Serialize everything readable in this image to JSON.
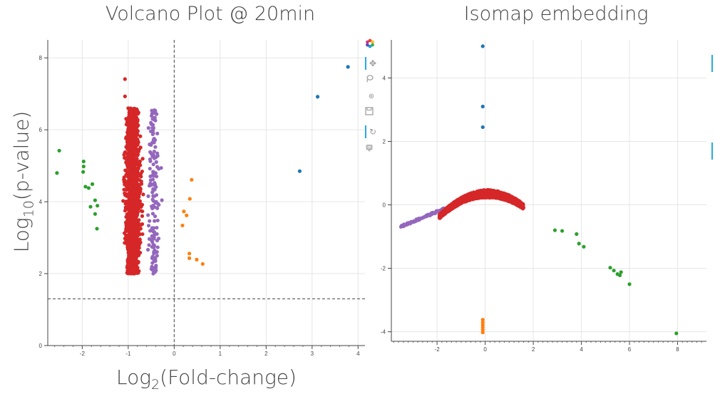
{
  "chart_data": [
    {
      "type": "scatter",
      "title": "Volcano Plot @ 20min",
      "xlabel_main": "Log",
      "xlabel_sub": "2",
      "xlabel_rest": "(Fold-change)",
      "ylabel_main": "Log",
      "ylabel_sub": "10",
      "ylabel_rest": "(p-value)",
      "xlim": [
        -2.75,
        4.15
      ],
      "ylim": [
        0,
        8.5
      ],
      "xticks": [
        -2,
        -1,
        0,
        1,
        2,
        3,
        4
      ],
      "yticks": [
        0,
        2,
        4,
        6,
        8
      ],
      "grid": true,
      "reference_lines": {
        "vertical_x": 0,
        "horizontal_y": 1.3
      },
      "series": [
        {
          "color": "#1f77b4",
          "points": [
            [
              3.78,
              7.75
            ],
            [
              3.12,
              6.92
            ],
            [
              2.73,
              4.85
            ]
          ]
        },
        {
          "color": "#2ca02c",
          "points": [
            [
              -2.5,
              5.42
            ],
            [
              -2.55,
              4.8
            ],
            [
              -1.97,
              5.12
            ],
            [
              -1.97,
              4.98
            ],
            [
              -1.98,
              4.83
            ],
            [
              -1.78,
              4.49
            ],
            [
              -1.93,
              4.42
            ],
            [
              -1.86,
              4.38
            ],
            [
              -1.72,
              4.04
            ],
            [
              -1.67,
              3.89
            ],
            [
              -1.82,
              3.86
            ],
            [
              -1.72,
              3.66
            ],
            [
              -1.68,
              3.25
            ]
          ]
        },
        {
          "color": "#ff7f0e",
          "points": [
            [
              0.38,
              4.61
            ],
            [
              0.34,
              4.08
            ],
            [
              0.21,
              3.73
            ],
            [
              0.27,
              3.62
            ],
            [
              0.18,
              3.34
            ],
            [
              0.33,
              2.56
            ],
            [
              0.33,
              2.43
            ],
            [
              0.49,
              2.39
            ],
            [
              0.62,
              2.27
            ]
          ]
        },
        {
          "color": "#d62728",
          "cluster": {
            "x_center": -0.9,
            "x_spread": 0.25,
            "y_min": 2.0,
            "y_max": 6.6,
            "count": 1500,
            "extremes": [
              [
                -1.07,
                7.41
              ],
              [
                -1.07,
                6.93
              ],
              [
                -1.0,
                6.6
              ]
            ]
          }
        },
        {
          "color": "#9467bd",
          "cluster": {
            "x_center": -0.45,
            "x_spread": 0.18,
            "y_min": 2.0,
            "y_max": 6.55,
            "count": 160
          }
        }
      ]
    },
    {
      "type": "scatter",
      "title": "Isomap embedding",
      "xlim": [
        -3.9,
        9.2
      ],
      "ylim": [
        -4.3,
        5.2
      ],
      "xticks": [
        -2,
        0,
        2,
        4,
        6,
        8
      ],
      "yticks": [
        -4,
        -2,
        0,
        2,
        4
      ],
      "grid": true,
      "series": [
        {
          "color": "#1f77b4",
          "points": [
            [
              -0.1,
              5.0
            ],
            [
              -0.1,
              3.1
            ],
            [
              -0.1,
              2.45
            ]
          ]
        },
        {
          "color": "#2ca02c",
          "points": [
            [
              2.9,
              -0.8
            ],
            [
              3.2,
              -0.82
            ],
            [
              3.8,
              -0.92
            ],
            [
              3.9,
              -1.22
            ],
            [
              4.1,
              -1.32
            ],
            [
              5.2,
              -1.98
            ],
            [
              5.35,
              -2.07
            ],
            [
              5.5,
              -2.18
            ],
            [
              5.6,
              -2.22
            ],
            [
              5.65,
              -2.12
            ],
            [
              6.0,
              -2.5
            ],
            [
              7.95,
              -4.05
            ]
          ]
        },
        {
          "color": "#ff7f0e",
          "points": [
            [
              -0.1,
              -3.62
            ],
            [
              -0.1,
              -3.7
            ],
            [
              -0.1,
              -3.78
            ],
            [
              -0.1,
              -3.86
            ],
            [
              -0.1,
              -3.94
            ],
            [
              -0.1,
              -4.02
            ]
          ]
        },
        {
          "color": "#9467bd",
          "arc": {
            "x_from": -3.5,
            "x_to": -1.7,
            "y_from": -0.68,
            "y_to": -0.12
          }
        },
        {
          "color": "#d62728",
          "arc": {
            "x_from": -1.9,
            "x_to": 1.6,
            "peak_x": 0.1,
            "peak_y": 0.35,
            "thickness": 0.25,
            "count": 1500
          }
        }
      ]
    }
  ],
  "toolbar": {
    "logo_icon": "bokeh-logo-icon",
    "tools": [
      "pan-icon",
      "lasso-select-icon",
      "wheel-zoom-icon",
      "save-icon",
      "reset-icon",
      "hover-icon"
    ]
  }
}
